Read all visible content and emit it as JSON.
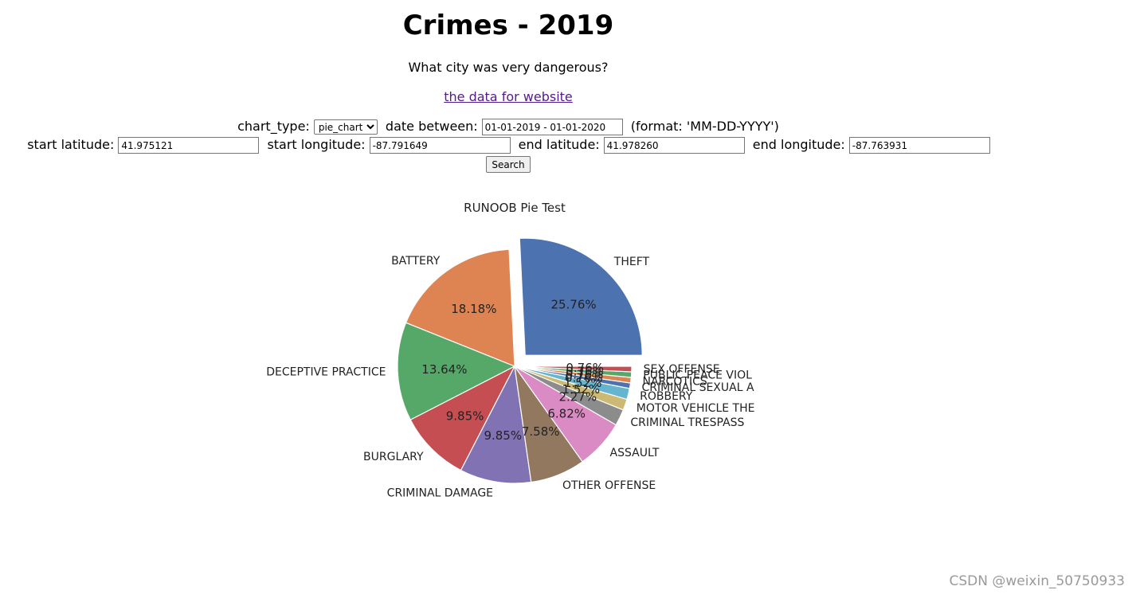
{
  "page": {
    "title": "Crimes - 2019",
    "subtitle": "What city was very dangerous?",
    "data_link": "the data for website",
    "watermark": "CSDN @weixin_50750933"
  },
  "form": {
    "chart_type_label": "chart_type:",
    "chart_type_value": "pie_chart",
    "date_label": "date between:",
    "date_value": "01-01-2019 - 01-01-2020",
    "date_hint": "(format: 'MM-DD-YYYY')",
    "start_lat_label": "start latitude:",
    "start_lat_value": "41.975121",
    "start_lon_label": "start longitude:",
    "start_lon_value": "-87.791649",
    "end_lat_label": "end latitude:",
    "end_lat_value": "41.978260",
    "end_lon_label": "end longitude:",
    "end_lon_value": "-87.763931",
    "search_label": "Search"
  },
  "chart_data": {
    "type": "pie",
    "title": "RUNOOB Pie Test",
    "slices": [
      {
        "label": "THEFT",
        "value": 25.76,
        "pct_label": "25.76%",
        "color": "#4c72b0",
        "explode": true
      },
      {
        "label": "BATTERY",
        "value": 18.18,
        "pct_label": "18.18%",
        "color": "#dd8452"
      },
      {
        "label": "DECEPTIVE PRACTICE",
        "value": 13.64,
        "pct_label": "13.64%",
        "color": "#55a868"
      },
      {
        "label": "BURGLARY",
        "value": 9.85,
        "pct_label": "9.85%",
        "color": "#c44e52"
      },
      {
        "label": "CRIMINAL DAMAGE",
        "value": 9.85,
        "pct_label": "9.85%",
        "color": "#8172b3"
      },
      {
        "label": "OTHER OFFENSE",
        "value": 7.58,
        "pct_label": "7.58%",
        "color": "#937860"
      },
      {
        "label": "ASSAULT",
        "value": 6.82,
        "pct_label": "6.82%",
        "color": "#da8bc3"
      },
      {
        "label": "CRIMINAL TRESPASS",
        "value": 2.27,
        "pct_label": "2.27%",
        "color": "#8c8c8c"
      },
      {
        "label": "MOTOR VEHICLE THE",
        "value": 1.52,
        "pct_label": "1.52%",
        "color": "#ccb974"
      },
      {
        "label": "ROBBERY",
        "value": 1.52,
        "pct_label": "1.52%",
        "color": "#64b5cd"
      },
      {
        "label": "CRIMINAL SEXUAL A",
        "value": 0.76,
        "pct_label": "0.76%",
        "color": "#4c72b0"
      },
      {
        "label": "NARCOTICS",
        "value": 0.76,
        "pct_label": "0.76%",
        "color": "#dd8452"
      },
      {
        "label": "PUBLIC PEACE VIOL",
        "value": 0.76,
        "pct_label": "0.76%",
        "color": "#55a868"
      },
      {
        "label": "SEX OFFENSE",
        "value": 0.76,
        "pct_label": "0.76%",
        "color": "#c44e52"
      }
    ]
  }
}
